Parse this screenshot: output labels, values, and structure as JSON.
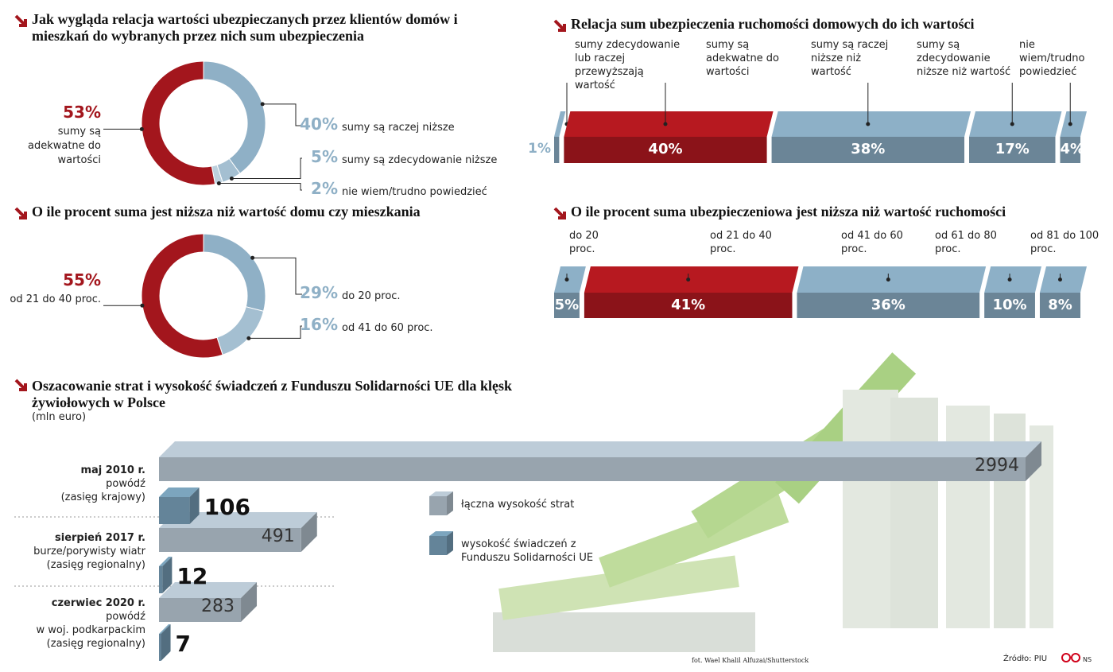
{
  "chart_data": [
    {
      "type": "donut",
      "title": "Jak wygląda relacja wartości ubezpieczanych przez klientów domów i mieszkań do wybranych przez nich sum ubezpieczenia",
      "categories": [
        "sumy są raczej niższe",
        "sumy są zdecydowanie niższe",
        "nie wiem/trudno powiedzieć",
        "sumy są adekwatne do wartości"
      ],
      "values": [
        40,
        5,
        2,
        53
      ],
      "value_labels": [
        "40%",
        "5%",
        "2%",
        "53%"
      ],
      "colors": [
        "#8fb0c6",
        "#a4bfd1",
        "#bcd0dd",
        "#a3161d"
      ]
    },
    {
      "type": "donut",
      "title": "O ile procent suma jest niższa niż wartość domu czy mieszkania",
      "categories": [
        "do 20 proc.",
        "od 41 do 60 proc.",
        "od 21 do 40 proc."
      ],
      "values": [
        29,
        16,
        55
      ],
      "value_labels": [
        "29%",
        "16%",
        "55%"
      ],
      "colors": [
        "#8fb0c6",
        "#a4bfd1",
        "#a3161d"
      ]
    },
    {
      "type": "stacked-bar",
      "title": "Relacja sum ubezpieczenia ruchomości domowych do ich wartości",
      "categories": [
        "sumy zdecydowanie lub raczej przewyższają wartość",
        "sumy są adekwatne do wartości",
        "sumy są raczej niższe niż wartość",
        "sumy są zdecydowanie niższe niż wartość",
        "nie wiem/trudno powiedzieć"
      ],
      "values": [
        1,
        40,
        38,
        17,
        4
      ],
      "value_labels": [
        "1%",
        "40%",
        "38%",
        "17%",
        "4%"
      ],
      "colors": [
        "#7e9db2",
        "#a3161d",
        "#7e9db2",
        "#7e9db2",
        "#7e9db2"
      ]
    },
    {
      "type": "stacked-bar",
      "title": "O ile procent suma ubezpieczeniowa jest niższa niż wartość ruchomości",
      "categories": [
        "do 20 proc.",
        "od 21 do 40 proc.",
        "od 41 do 60 proc.",
        "od 61 do 80 proc.",
        "od 81 do 100 proc."
      ],
      "values": [
        5,
        41,
        36,
        10,
        8
      ],
      "value_labels": [
        "5%",
        "41%",
        "36%",
        "10%",
        "8%"
      ],
      "colors": [
        "#7e9db2",
        "#a3161d",
        "#7e9db2",
        "#7e9db2",
        "#7e9db2"
      ]
    },
    {
      "type": "bar",
      "orientation": "horizontal",
      "title": "Oszacowanie strat i wysokość świadczeń z Funduszu Solidarności UE dla klęsk żywiołowych w Polsce",
      "subtitle": "(mln euro)",
      "categories": [
        [
          "maj 2010 r.",
          "powódź",
          "(zasięg krajowy)"
        ],
        [
          "sierpień 2017 r.",
          "burze/porywisty wiatr",
          "(zasięg regionalny)"
        ],
        [
          "czerwiec 2020 r.",
          "powódź",
          "w woj. podkarpackim",
          "(zasięg regionalny)"
        ]
      ],
      "series": [
        {
          "name": "łączna wysokość strat",
          "color": "#a9b6c1",
          "values": [
            2994,
            491,
            283
          ]
        },
        {
          "name": "wysokość świadczeń z Funduszu Solidarności UE",
          "color": "#6f93aa",
          "values": [
            106,
            12,
            7
          ]
        }
      ]
    }
  ],
  "credits": {
    "photo": "fot. Wael Khalil Alfuzai/Shutterstock",
    "source": "Źródło: PIU",
    "author": "NS"
  }
}
